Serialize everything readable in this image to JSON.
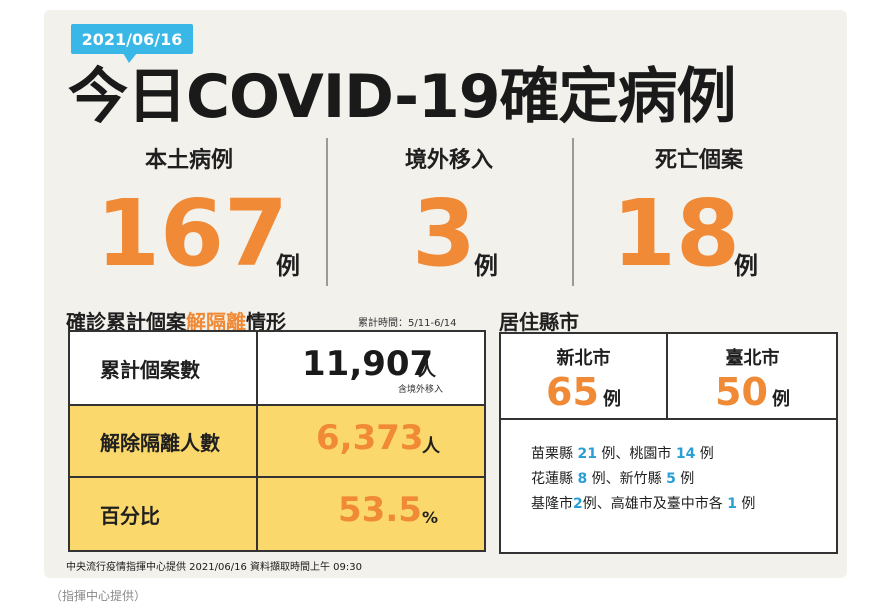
{
  "date_badge": "2021/06/16",
  "title": "今日COVID-19確定病例",
  "stats": [
    {
      "label": "本土病例",
      "value": "167",
      "unit": "例"
    },
    {
      "label": "境外移入",
      "value": "3",
      "unit": "例"
    },
    {
      "label": "死亡個案",
      "value": "18",
      "unit": "例"
    }
  ],
  "isolation": {
    "title_a": "確診累計個案",
    "title_highlight": "解隔離",
    "title_b": "情形",
    "note": "累計時間：5/11-6/14",
    "rows": [
      {
        "label": "累計個案數",
        "value": "11,907",
        "unit": "人",
        "sub": "含境外移入"
      },
      {
        "label": "解除隔離人數",
        "value": "6,373",
        "unit": "人"
      },
      {
        "label": "百分比",
        "value": "53.5",
        "unit": "%"
      }
    ]
  },
  "residence": {
    "title": "居住縣市",
    "top": [
      {
        "name": "新北市",
        "value": "65",
        "unit": "例"
      },
      {
        "name": "臺北市",
        "value": "50",
        "unit": "例"
      }
    ],
    "lines": [
      [
        {
          "t": "苗栗縣 "
        },
        {
          "n": "21"
        },
        {
          "t": " 例、桃園市 "
        },
        {
          "n": "14"
        },
        {
          "t": " 例"
        }
      ],
      [
        {
          "t": "花蓮縣 "
        },
        {
          "n": "8"
        },
        {
          "t": " 例、新竹縣 "
        },
        {
          "n": "5"
        },
        {
          "t": " 例"
        }
      ],
      [
        {
          "t": "基隆市"
        },
        {
          "n": "2"
        },
        {
          "t": "例、高雄市及臺中市各 "
        },
        {
          "n": "1"
        },
        {
          "t": " 例"
        }
      ]
    ]
  },
  "footer": "中央流行疫情指揮中心提供  2021/06/16  資料擷取時間上午 09:30",
  "caption": "（指揮中心提供）",
  "colors": {
    "accent_orange": "#f08a36",
    "badge_blue": "#39b7e6",
    "highlight_yellow": "#fbd86b",
    "number_blue": "#2a9fd6"
  }
}
